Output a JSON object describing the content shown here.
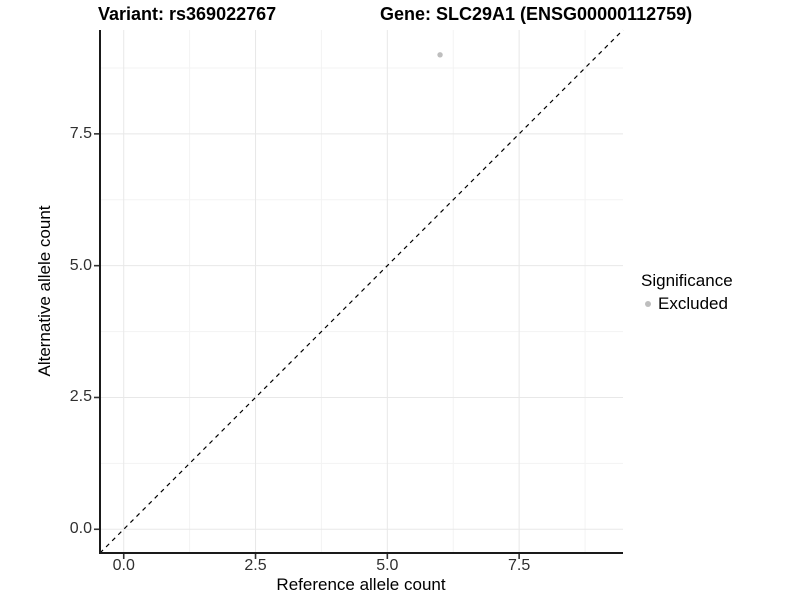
{
  "title": {
    "variant": "Variant: rs369022767",
    "gene": "Gene: SLC29A1 (ENSG00000112759)"
  },
  "legend": {
    "title": "Significance",
    "items": [
      {
        "label": "Excluded",
        "color": "#bebebe"
      }
    ]
  },
  "colors": {
    "background": "#ffffff",
    "axis_line": "#1a1a1a",
    "tick_mark": "#333333",
    "tick_label": "#303030",
    "grid_major": "#e8e8e8",
    "grid_minor": "#f3f3f3",
    "reference_line": "#000000",
    "point": "#bebebe"
  },
  "chart_data": {
    "type": "scatter",
    "title": "Variant: rs369022767    Gene: SLC29A1 (ENSG00000112759)",
    "xlabel": "Reference allele count",
    "ylabel": "Alternative allele count",
    "xlim": [
      -0.45,
      9.47
    ],
    "ylim": [
      -0.45,
      9.47
    ],
    "x_ticks": [
      0.0,
      2.5,
      5.0,
      7.5
    ],
    "y_ticks": [
      0.0,
      2.5,
      5.0,
      7.5
    ],
    "x_tick_labels": [
      "0.0",
      "2.5",
      "5.0",
      "7.5"
    ],
    "y_tick_labels": [
      "0.0",
      "2.5",
      "5.0",
      "7.5"
    ],
    "x_minor": [
      1.25,
      3.75,
      6.25,
      8.75
    ],
    "y_minor": [
      1.25,
      3.75,
      6.25,
      8.75
    ],
    "grid": true,
    "legend_position": "right",
    "legend_title": "Significance",
    "series": [
      {
        "name": "Excluded",
        "color": "#bebebe",
        "points": [
          {
            "x": 6,
            "y": 9
          }
        ]
      }
    ],
    "reference_line": {
      "type": "identity",
      "style": "dashed",
      "comment": "y = x dashed line from corner to corner"
    }
  }
}
